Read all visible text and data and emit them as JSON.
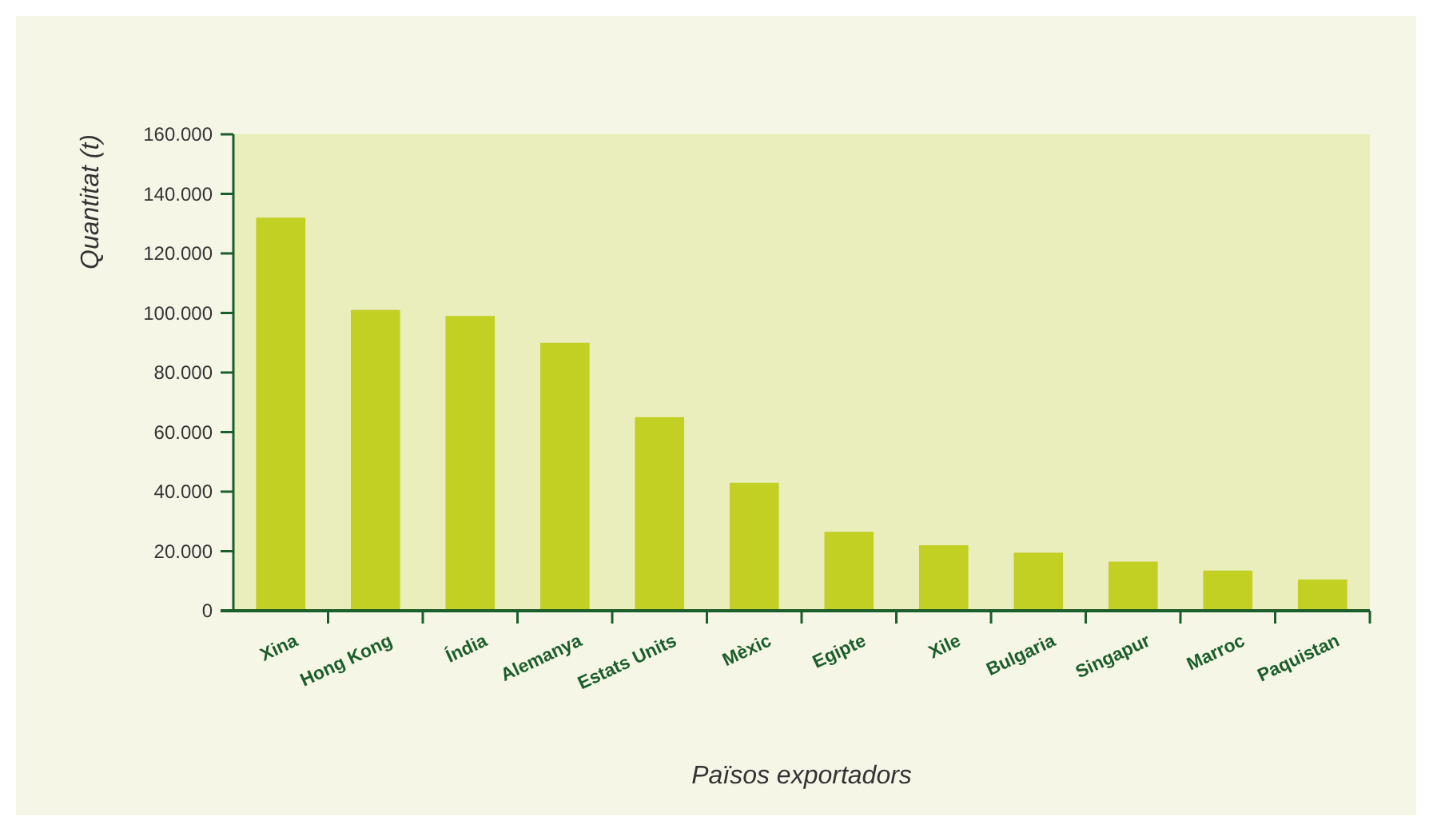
{
  "chart_data": {
    "type": "bar",
    "xlabel": "Països exportadors",
    "ylabel": "Quantitat (t)",
    "categories": [
      "Xina",
      "Hong Kong",
      "Índia",
      "Alemanya",
      "Estats Units",
      "Mèxic",
      "Egipte",
      "Xile",
      "Bulgaria",
      "Singapur",
      "Marroc",
      "Paquistan"
    ],
    "values": [
      132000,
      101000,
      99000,
      90000,
      65000,
      43000,
      26500,
      22000,
      19500,
      16500,
      13500,
      10500
    ],
    "color": "#c2cf23",
    "ylim": [
      0,
      160000
    ],
    "yticks": [
      {
        "value": 0,
        "label": "0"
      },
      {
        "value": 20000,
        "label": "20.000"
      },
      {
        "value": 40000,
        "label": "40.000"
      },
      {
        "value": 60000,
        "label": "60.000"
      },
      {
        "value": 80000,
        "label": "80.000"
      },
      {
        "value": 100000,
        "label": "100.000"
      },
      {
        "value": 120000,
        "label": "120.000"
      },
      {
        "value": 140000,
        "label": "140.000"
      },
      {
        "value": 160000,
        "label": "160.000"
      }
    ],
    "grid": false
  }
}
